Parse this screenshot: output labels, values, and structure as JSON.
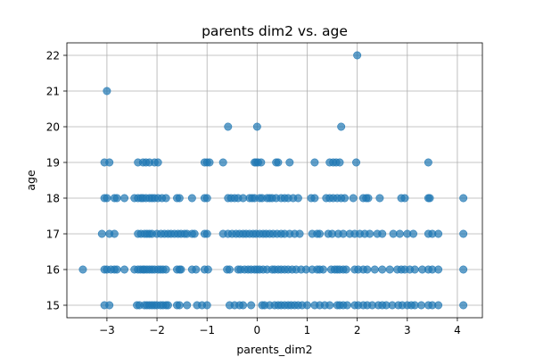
{
  "chart_data": {
    "type": "scatter",
    "title": "parents dim2 vs. age",
    "xlabel": "parents_dim2",
    "ylabel": "age",
    "xlim": [
      -3.8,
      4.5
    ],
    "ylim": [
      14.65,
      22.35
    ],
    "xticks": [
      -3,
      -2,
      -1,
      0,
      1,
      2,
      3,
      4
    ],
    "yticks": [
      15,
      16,
      17,
      18,
      19,
      20,
      21,
      22
    ],
    "xtick_labels": [
      "−3",
      "−2",
      "−1",
      "0",
      "1",
      "2",
      "3",
      "4"
    ],
    "ytick_labels": [
      "15",
      "16",
      "17",
      "18",
      "19",
      "20",
      "21",
      "22"
    ],
    "grid": true,
    "marker_color": "#1f77b4",
    "marker_alpha": 0.7,
    "series": [
      {
        "x": [
          -3.48,
          -3.05,
          -3.0,
          -2.92,
          -2.85,
          -2.8,
          -2.65,
          -2.45,
          -2.38,
          -2.33,
          -2.28,
          -2.25,
          -2.2,
          -2.15,
          -2.1,
          -2.05,
          -1.98,
          -1.93,
          -1.88,
          -1.82,
          -1.6,
          -1.55,
          -1.52,
          -1.3,
          -1.22,
          -1.05,
          -0.98,
          -0.6,
          -0.55,
          -0.38,
          -0.33,
          -0.25,
          -0.18,
          -0.12,
          -0.05,
          0.0,
          0.05,
          0.12,
          0.2,
          0.3,
          0.35,
          0.42,
          0.48,
          0.55,
          0.62,
          0.7,
          0.78,
          0.88,
          0.98,
          1.1,
          1.2,
          1.25,
          1.32,
          1.48,
          1.55,
          1.6,
          1.65,
          1.72,
          1.78,
          1.95,
          2.02,
          2.12,
          2.2,
          2.35,
          2.5,
          2.65,
          2.8,
          2.88,
          2.95,
          3.05,
          3.15,
          3.3,
          3.42,
          3.5,
          3.62,
          4.12,
          -3.05,
          -2.95,
          -2.4,
          -2.35,
          -2.25,
          -2.2,
          -2.15,
          -2.1,
          -2.05,
          -2.0,
          -1.93,
          -1.88,
          -1.82,
          -1.78,
          -1.6,
          -1.55,
          -1.4,
          -1.2,
          -1.1,
          -1.0,
          -0.55,
          -0.45,
          -0.35,
          -0.28,
          -0.12,
          0.1,
          0.15,
          0.25,
          0.35,
          0.42,
          0.48,
          0.55,
          0.62,
          0.68,
          0.75,
          0.82,
          0.9,
          1.0,
          1.15,
          1.25,
          1.35,
          1.45,
          1.6,
          1.65,
          1.72,
          1.8,
          1.95,
          2.02,
          2.12,
          2.2,
          2.3,
          2.42,
          2.5,
          2.58,
          2.7,
          2.82,
          2.9,
          3.0,
          3.08,
          3.15,
          3.28,
          3.42,
          3.5,
          3.62,
          4.12,
          -3.1,
          -2.95,
          -2.85,
          -2.38,
          -2.32,
          -2.25,
          -2.2,
          -2.15,
          -2.1,
          -2.0,
          -1.92,
          -1.85,
          -1.78,
          -1.72,
          -1.65,
          -1.58,
          -1.52,
          -1.45,
          -1.4,
          -1.3,
          -1.25,
          -1.05,
          -1.0,
          -0.68,
          -0.58,
          -0.5,
          -0.42,
          -0.35,
          -0.28,
          -0.22,
          -0.15,
          -0.08,
          -0.02,
          0.05,
          0.12,
          0.18,
          0.25,
          0.32,
          0.4,
          0.48,
          0.55,
          0.65,
          0.75,
          0.85,
          1.1,
          1.2,
          1.25,
          1.42,
          1.5,
          1.62,
          1.72,
          1.85,
          1.95,
          2.05,
          2.15,
          2.25,
          2.4,
          2.5,
          2.72,
          2.85,
          3.0,
          3.12,
          3.42,
          3.5,
          3.62,
          4.12,
          -3.05,
          -3.0,
          -2.85,
          -2.8,
          -2.65,
          -2.45,
          -2.38,
          -2.32,
          -2.28,
          -2.22,
          -2.15,
          -2.1,
          -2.05,
          -1.98,
          -1.9,
          -1.82,
          -1.6,
          -1.55,
          -1.3,
          -1.05,
          -1.0,
          -0.58,
          -0.52,
          -0.45,
          -0.38,
          -0.28,
          -0.15,
          -0.1,
          -0.05,
          0.05,
          0.1,
          0.2,
          0.25,
          0.3,
          0.38,
          0.48,
          0.55,
          0.62,
          0.72,
          0.82,
          1.08,
          1.15,
          1.38,
          1.45,
          1.52,
          1.6,
          1.68,
          1.75,
          1.92,
          2.12,
          2.18,
          2.22,
          2.45,
          2.88,
          2.95,
          3.42,
          3.45,
          4.12,
          -3.05,
          -2.95,
          -2.38,
          -2.28,
          -2.22,
          -2.15,
          -2.05,
          -1.98,
          -1.05,
          -1.0,
          -0.95,
          -0.68,
          -0.05,
          -0.02,
          0.02,
          0.08,
          0.38,
          0.42,
          0.65,
          1.15,
          1.45,
          1.52,
          1.58,
          1.65,
          1.98,
          3.42,
          -0.58,
          0.0,
          1.68,
          -3.0,
          2.0
        ],
        "y": [
          16,
          16,
          16,
          16,
          16,
          16,
          16,
          16,
          16,
          16,
          16,
          16,
          16,
          16,
          16,
          16,
          16,
          16,
          16,
          16,
          16,
          16,
          16,
          16,
          16,
          16,
          16,
          16,
          16,
          16,
          16,
          16,
          16,
          16,
          16,
          16,
          16,
          16,
          16,
          16,
          16,
          16,
          16,
          16,
          16,
          16,
          16,
          16,
          16,
          16,
          16,
          16,
          16,
          16,
          16,
          16,
          16,
          16,
          16,
          16,
          16,
          16,
          16,
          16,
          16,
          16,
          16,
          16,
          16,
          16,
          16,
          16,
          16,
          16,
          16,
          16,
          15,
          15,
          15,
          15,
          15,
          15,
          15,
          15,
          15,
          15,
          15,
          15,
          15,
          15,
          15,
          15,
          15,
          15,
          15,
          15,
          15,
          15,
          15,
          15,
          15,
          15,
          15,
          15,
          15,
          15,
          15,
          15,
          15,
          15,
          15,
          15,
          15,
          15,
          15,
          15,
          15,
          15,
          15,
          15,
          15,
          15,
          15,
          15,
          15,
          15,
          15,
          15,
          15,
          15,
          15,
          15,
          15,
          15,
          15,
          15,
          15,
          15,
          15,
          15,
          15,
          17,
          17,
          17,
          17,
          17,
          17,
          17,
          17,
          17,
          17,
          17,
          17,
          17,
          17,
          17,
          17,
          17,
          17,
          17,
          17,
          17,
          17,
          17,
          17,
          17,
          17,
          17,
          17,
          17,
          17,
          17,
          17,
          17,
          17,
          17,
          17,
          17,
          17,
          17,
          17,
          17,
          17,
          17,
          17,
          17,
          17,
          17,
          17,
          17,
          17,
          17,
          17,
          17,
          17,
          17,
          17,
          17,
          17,
          17,
          17,
          17,
          17,
          17,
          17,
          17,
          17,
          18,
          18,
          18,
          18,
          18,
          18,
          18,
          18,
          18,
          18,
          18,
          18,
          18,
          18,
          18,
          18,
          18,
          18,
          18,
          18,
          18,
          18,
          18,
          18,
          18,
          18,
          18,
          18,
          18,
          18,
          18,
          18,
          18,
          18,
          18,
          18,
          18,
          18,
          18,
          18,
          18,
          18,
          18,
          18,
          18,
          18,
          18,
          18,
          18,
          18,
          18,
          18,
          18,
          18,
          18,
          18,
          18,
          18,
          19,
          19,
          19,
          19,
          19,
          19,
          19,
          19,
          19,
          19,
          19,
          19,
          19,
          19,
          19,
          19,
          19,
          19,
          19,
          19,
          19,
          19,
          19,
          19,
          19,
          19,
          20,
          20,
          20,
          21,
          22
        ]
      }
    ]
  }
}
